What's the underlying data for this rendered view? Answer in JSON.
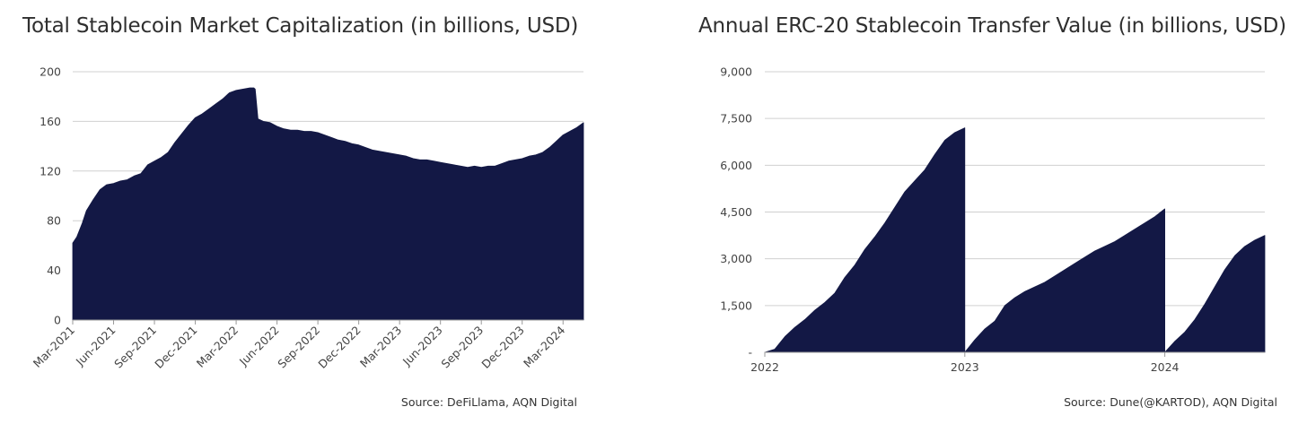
{
  "chart_data": [
    {
      "type": "area",
      "title": "Total Stablecoin Market Capitalization (in billions, USD)",
      "source": "Source: DeFiLlama, AQN Digital",
      "xlabel": "",
      "ylabel": "",
      "color": "#131845",
      "ylim": [
        0,
        200
      ],
      "yticks": [
        "0",
        "40",
        "80",
        "120",
        "160",
        "200"
      ],
      "ytick_values": [
        0,
        40,
        80,
        120,
        160,
        200
      ],
      "x_tick_labels": [
        "Mar-2021",
        "Jun-2021",
        "Sep-2021",
        "Dec-2021",
        "Mar-2022",
        "Jun-2022",
        "Sep-2022",
        "Dec-2022",
        "Mar-2023",
        "Jun-2023",
        "Sep-2023",
        "Dec-2023",
        "Mar-2024"
      ],
      "x_tick_months": [
        0,
        3,
        6,
        9,
        12,
        15,
        18,
        21,
        24,
        27,
        30,
        33,
        36
      ],
      "xlim_months": [
        0,
        37.5
      ],
      "series": [
        {
          "name": "Total Stablecoin Market Cap",
          "x_months": [
            0,
            0.3,
            0.7,
            1,
            1.5,
            2,
            2.5,
            3,
            3.5,
            4,
            4.5,
            5,
            5.5,
            6,
            6.5,
            7,
            7.5,
            8,
            8.5,
            9,
            9.5,
            10,
            10.5,
            11,
            11.5,
            12,
            12.5,
            13,
            13.3,
            13.4,
            13.6,
            14,
            14.5,
            15,
            15.5,
            16,
            16.5,
            17,
            17.5,
            18,
            18.5,
            19,
            19.5,
            20,
            20.5,
            21,
            21.5,
            22,
            22.5,
            23,
            23.5,
            24,
            24.5,
            25,
            25.5,
            26,
            26.5,
            27,
            27.5,
            28,
            28.5,
            29,
            29.5,
            30,
            30.5,
            31,
            31.5,
            32,
            32.5,
            33,
            33.5,
            34,
            34.5,
            35,
            35.5,
            36,
            36.5,
            37,
            37.5
          ],
          "values": [
            62,
            67,
            78,
            88,
            97,
            105,
            109,
            110,
            112,
            113,
            116,
            118,
            125,
            128,
            131,
            135,
            143,
            150,
            157,
            163,
            166,
            170,
            174,
            178,
            183,
            185,
            186,
            187,
            187,
            186,
            162,
            160,
            159,
            156,
            154,
            153,
            153,
            152,
            152,
            151,
            149,
            147,
            145,
            144,
            142,
            141,
            139,
            137,
            136,
            135,
            134,
            133,
            132,
            130,
            129,
            129,
            128,
            127,
            126,
            125,
            124,
            123,
            124,
            123,
            124,
            124,
            126,
            128,
            129,
            130,
            132,
            133,
            135,
            139,
            144,
            149,
            152,
            155,
            159
          ]
        }
      ]
    },
    {
      "type": "area",
      "title": "Annual ERC-20 Stablecoin Transfer Value (in billions, USD)",
      "source": "Source: Dune(@KARTOD), AQN Digital",
      "xlabel": "",
      "ylabel": "",
      "color": "#131845",
      "ylim": [
        0,
        9000
      ],
      "yticks": [
        "-",
        "1,500",
        "3,000",
        "4,500",
        "6,000",
        "7,500",
        "9,000"
      ],
      "ytick_values": [
        0,
        1500,
        3000,
        4500,
        6000,
        7500,
        9000
      ],
      "x_tick_labels": [
        "2022",
        "2023",
        "2024"
      ],
      "x_tick_years": [
        2022,
        2023,
        2024
      ],
      "xlim_years": [
        2022,
        2024.5
      ],
      "series": [
        {
          "name": "2022",
          "x": [
            2022,
            2022.05,
            2022.1,
            2022.15,
            2022.2,
            2022.25,
            2022.3,
            2022.35,
            2022.4,
            2022.45,
            2022.5,
            2022.55,
            2022.6,
            2022.65,
            2022.7,
            2022.75,
            2022.8,
            2022.85,
            2022.9,
            2022.95,
            2023
          ],
          "values": [
            0,
            100,
            500,
            800,
            1050,
            1350,
            1600,
            1900,
            2400,
            2800,
            3300,
            3700,
            4150,
            4650,
            5150,
            5500,
            5850,
            6350,
            6800,
            7050,
            7200
          ]
        },
        {
          "name": "2023",
          "x": [
            2023,
            2023.05,
            2023.1,
            2023.15,
            2023.2,
            2023.25,
            2023.3,
            2023.35,
            2023.4,
            2023.45,
            2023.5,
            2023.55,
            2023.6,
            2023.65,
            2023.7,
            2023.75,
            2023.8,
            2023.85,
            2023.9,
            2023.95,
            2024
          ],
          "values": [
            0,
            400,
            750,
            1000,
            1500,
            1750,
            1950,
            2100,
            2250,
            2450,
            2650,
            2850,
            3050,
            3250,
            3400,
            3550,
            3750,
            3950,
            4150,
            4350,
            4600
          ]
        },
        {
          "name": "2024",
          "x": [
            2024,
            2024.05,
            2024.1,
            2024.15,
            2024.2,
            2024.25,
            2024.3,
            2024.35,
            2024.4,
            2024.45,
            2024.5
          ],
          "values": [
            0,
            350,
            650,
            1050,
            1550,
            2100,
            2650,
            3100,
            3400,
            3600,
            3750
          ]
        }
      ]
    }
  ]
}
